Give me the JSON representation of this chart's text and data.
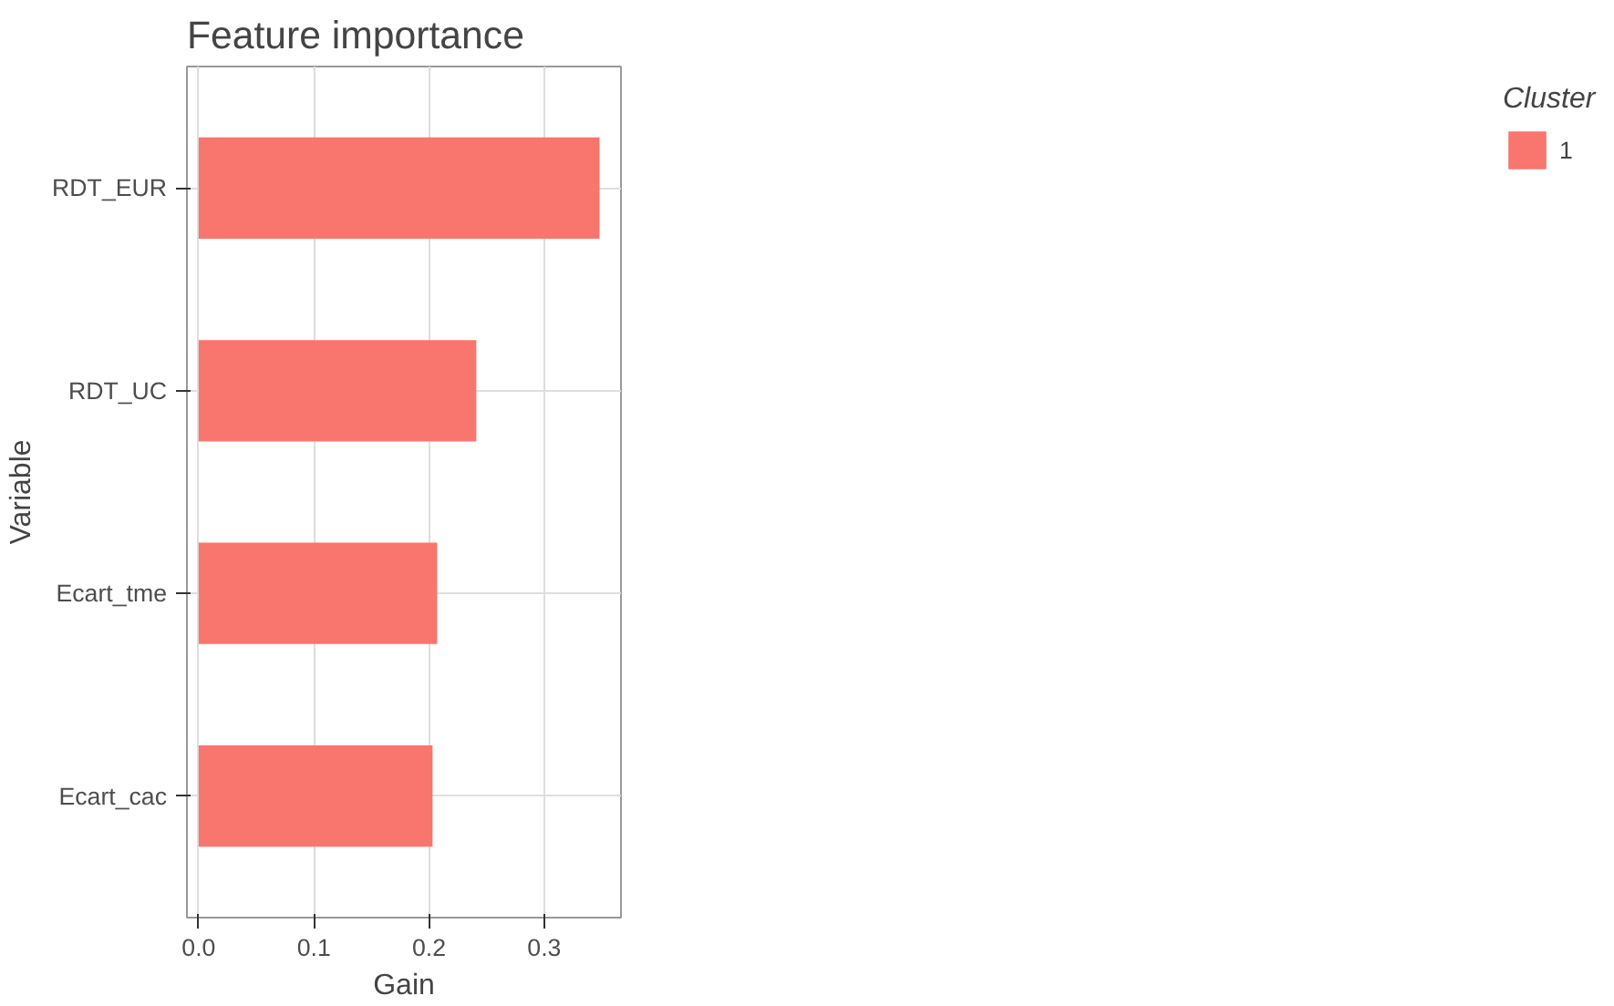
{
  "chart_data": {
    "type": "bar",
    "orientation": "horizontal",
    "title": "Feature importance",
    "xlabel": "Gain",
    "ylabel": "Variable",
    "legend_title": "Cluster",
    "categories": [
      "RDT_EUR",
      "RDT_UC",
      "Ecart_tme",
      "Ecart_cac"
    ],
    "series": [
      {
        "name": "1",
        "color": "#f8766d",
        "values": [
          0.348,
          0.241,
          0.207,
          0.203
        ]
      }
    ],
    "xlim": [
      -0.0102,
      0.3666
    ],
    "xticks": [
      {
        "value": 0,
        "label": "0.0"
      },
      0.1,
      0.2,
      0.3
    ],
    "grid": true,
    "legend": "right"
  }
}
